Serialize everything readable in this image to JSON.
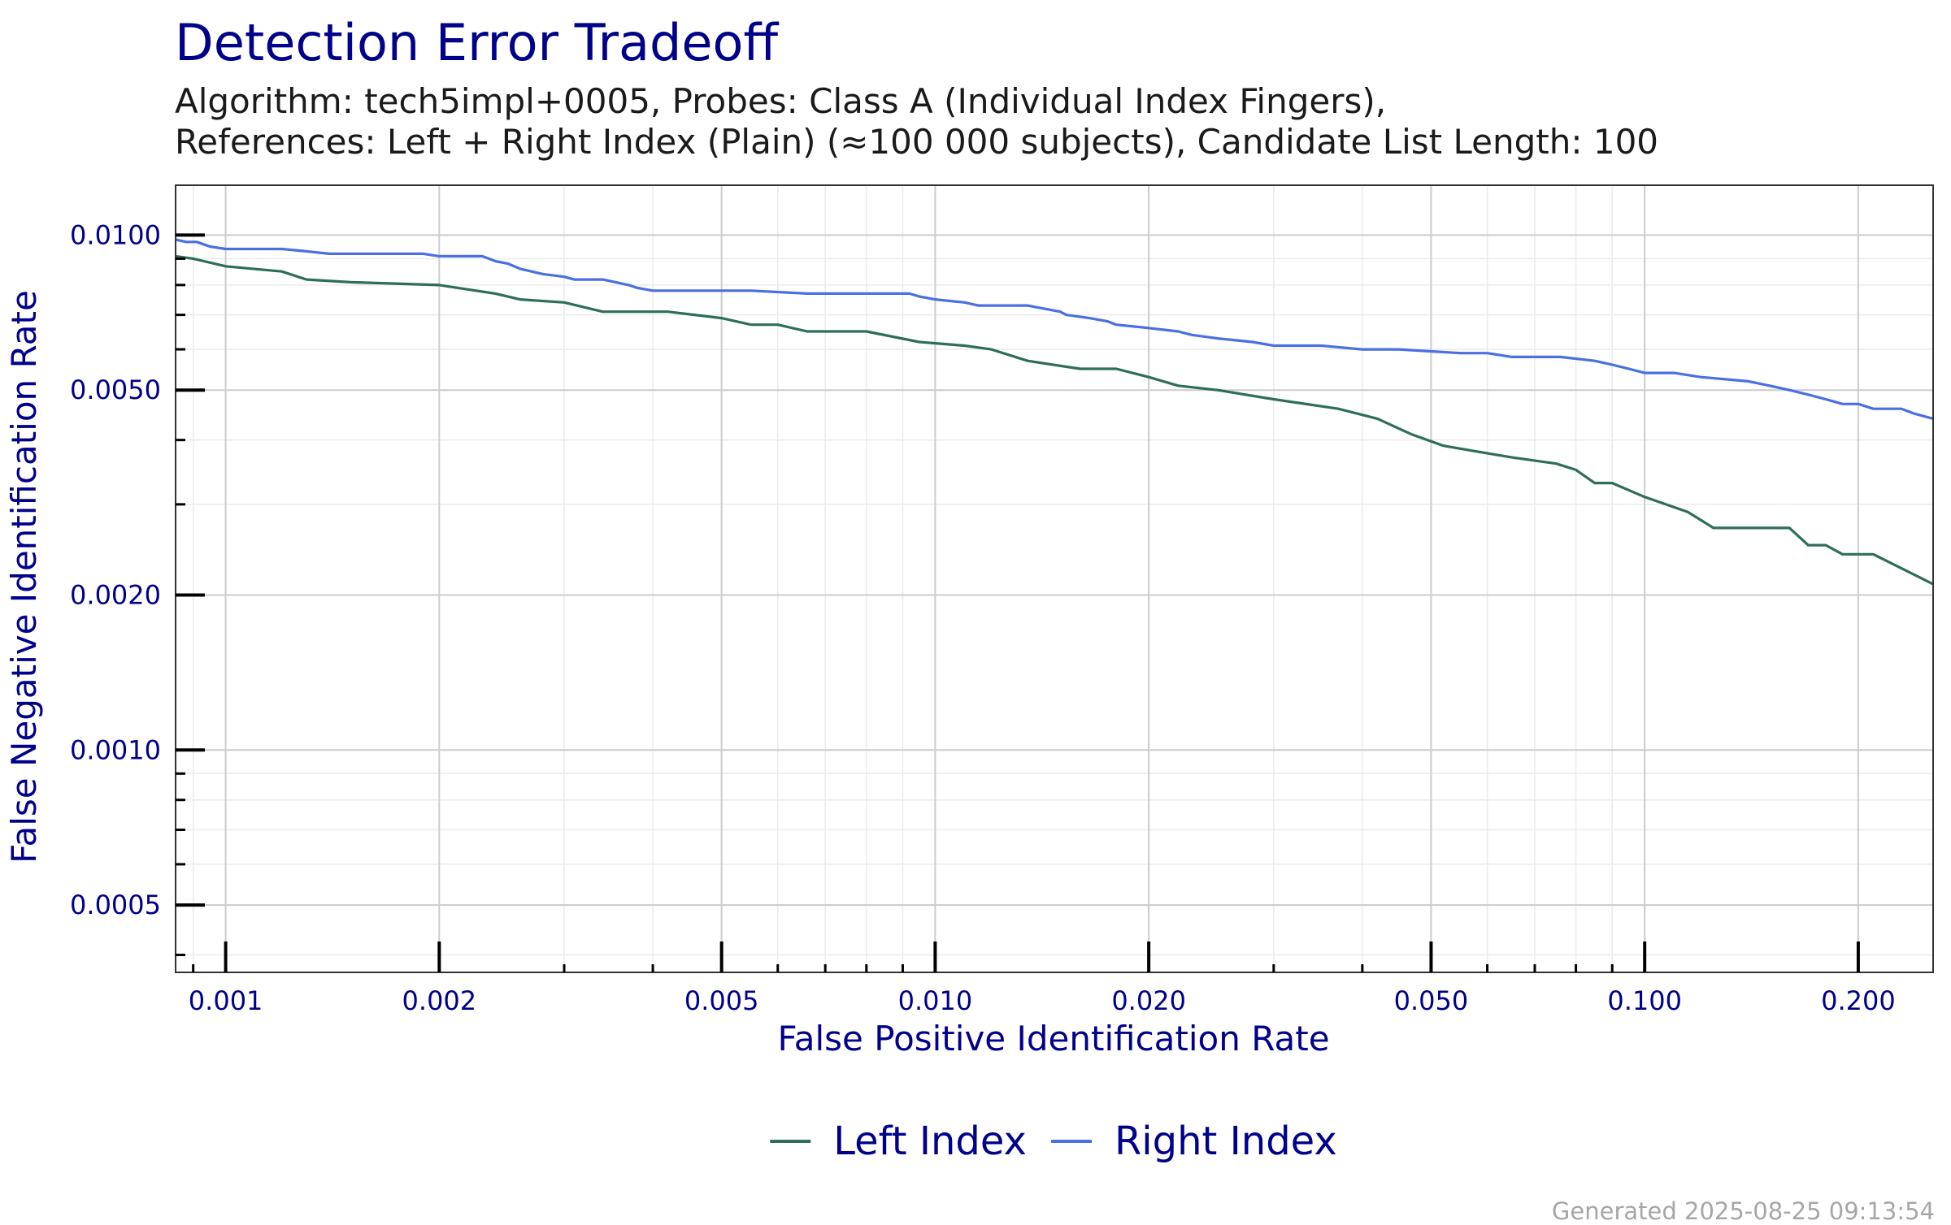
{
  "chart_data": {
    "type": "line",
    "title": "Detection Error Tradeoff",
    "subtitle_lines": [
      "Algorithm: tech5impl+0005, Probes: Class A (Individual Index Fingers),",
      "References: Left + Right Index (Plain) (≈100 000 subjects), Candidate List Length: 100"
    ],
    "xlabel": "False Positive Identification Rate",
    "ylabel": "False Negative Identification Rate",
    "x_scale": "log",
    "y_scale": "log",
    "xlim": [
      0.00085,
      0.255
    ],
    "ylim": [
      0.00037,
      0.0125
    ],
    "x_ticks": [
      0.001,
      0.002,
      0.005,
      0.01,
      0.02,
      0.05,
      0.1,
      0.2
    ],
    "x_tick_labels": [
      "0.001",
      "0.002",
      "0.005",
      "0.010",
      "0.020",
      "0.050",
      "0.100",
      "0.200"
    ],
    "y_ticks": [
      0.0005,
      0.001,
      0.002,
      0.005,
      0.01
    ],
    "y_tick_labels": [
      "0.0005",
      "0.0010",
      "0.0020",
      "0.0050",
      "0.0100"
    ],
    "grid": true,
    "legend_position": "bottom",
    "series": [
      {
        "name": "Left Index",
        "color": "#2E6E55",
        "x": [
          0.00085,
          0.0009,
          0.001,
          0.0012,
          0.0013,
          0.0015,
          0.002,
          0.0024,
          0.0026,
          0.003,
          0.0034,
          0.0038,
          0.0042,
          0.005,
          0.0055,
          0.006,
          0.0066,
          0.008,
          0.0095,
          0.011,
          0.012,
          0.0135,
          0.016,
          0.018,
          0.02,
          0.022,
          0.025,
          0.03,
          0.037,
          0.042,
          0.047,
          0.052,
          0.058,
          0.065,
          0.075,
          0.08,
          0.085,
          0.09,
          0.1,
          0.115,
          0.125,
          0.16,
          0.17,
          0.18,
          0.19,
          0.21,
          0.255
        ],
        "y": [
          0.0091,
          0.009,
          0.0087,
          0.0085,
          0.0082,
          0.0081,
          0.008,
          0.0077,
          0.0075,
          0.0074,
          0.0071,
          0.0071,
          0.0071,
          0.0069,
          0.0067,
          0.0067,
          0.0065,
          0.0065,
          0.0062,
          0.0061,
          0.006,
          0.0057,
          0.0055,
          0.0055,
          0.0053,
          0.0051,
          0.005,
          0.0048,
          0.0046,
          0.0044,
          0.0041,
          0.0039,
          0.0038,
          0.0037,
          0.0036,
          0.0035,
          0.0033,
          0.0033,
          0.0031,
          0.0029,
          0.0027,
          0.0027,
          0.0025,
          0.0025,
          0.0024,
          0.0024,
          0.0021
        ]
      },
      {
        "name": "Right Index",
        "color": "#4A6FE3",
        "x": [
          0.00085,
          0.00088,
          0.00091,
          0.00095,
          0.001,
          0.0012,
          0.0013,
          0.0014,
          0.0019,
          0.002,
          0.0023,
          0.0024,
          0.0025,
          0.0026,
          0.0027,
          0.0028,
          0.003,
          0.0031,
          0.0034,
          0.0037,
          0.0038,
          0.004,
          0.0055,
          0.0066,
          0.007,
          0.0092,
          0.0095,
          0.01,
          0.011,
          0.0115,
          0.0135,
          0.015,
          0.0153,
          0.0165,
          0.0175,
          0.018,
          0.02,
          0.022,
          0.023,
          0.025,
          0.028,
          0.03,
          0.035,
          0.04,
          0.045,
          0.055,
          0.06,
          0.065,
          0.076,
          0.085,
          0.09,
          0.095,
          0.1,
          0.11,
          0.12,
          0.14,
          0.15,
          0.16,
          0.17,
          0.18,
          0.19,
          0.2,
          0.21,
          0.23,
          0.24,
          0.255
        ],
        "y": [
          0.0098,
          0.0097,
          0.0097,
          0.0095,
          0.0094,
          0.0094,
          0.0093,
          0.0092,
          0.0092,
          0.0091,
          0.0091,
          0.0089,
          0.0088,
          0.0086,
          0.0085,
          0.0084,
          0.0083,
          0.0082,
          0.0082,
          0.008,
          0.0079,
          0.0078,
          0.0078,
          0.0077,
          0.0077,
          0.0077,
          0.0076,
          0.0075,
          0.0074,
          0.0073,
          0.0073,
          0.0071,
          0.007,
          0.0069,
          0.0068,
          0.0067,
          0.0066,
          0.0065,
          0.0064,
          0.0063,
          0.0062,
          0.0061,
          0.0061,
          0.006,
          0.006,
          0.0059,
          0.0059,
          0.0058,
          0.0058,
          0.0057,
          0.0056,
          0.0055,
          0.0054,
          0.0054,
          0.0053,
          0.0052,
          0.0051,
          0.005,
          0.0049,
          0.0048,
          0.0047,
          0.0047,
          0.0046,
          0.0046,
          0.0045,
          0.0044
        ]
      }
    ]
  },
  "footer": {
    "generated": "Generated 2025-08-25 09:13:54"
  }
}
